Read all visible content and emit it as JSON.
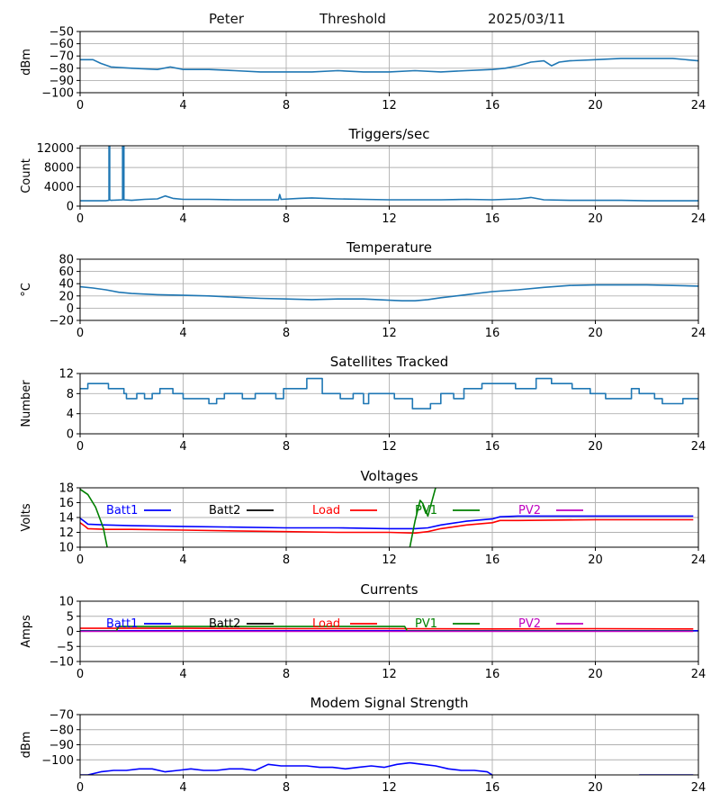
{
  "header": {
    "station": "Peter",
    "mode": "Threshold",
    "date": "2025/03/11"
  },
  "colors": {
    "default_series": "#1f77b4",
    "batt1": "#0000ff",
    "batt2": "#000000",
    "load": "#ff0000",
    "pv1": "#008000",
    "pv2": "#bf00bf",
    "grid": "#b0b0b0"
  },
  "chart_data": [
    {
      "id": "signal",
      "type": "line",
      "title": "",
      "xlabel": "",
      "ylabel": "dBm",
      "xlim": [
        0,
        24
      ],
      "ylim": [
        -100,
        -50
      ],
      "xticks": [
        0,
        4,
        8,
        12,
        16,
        20,
        24
      ],
      "yticks": [
        -100,
        -90,
        -80,
        -70,
        -60,
        -50
      ],
      "grid": true,
      "series": [
        {
          "color": "#1f77b4",
          "x": [
            0,
            0.5,
            0.8,
            1.2,
            2,
            3,
            3.5,
            4,
            5,
            6,
            7,
            8,
            9,
            10,
            11,
            12,
            13,
            14,
            15,
            16,
            16.5,
            17,
            17.5,
            18,
            18.3,
            18.6,
            19,
            20,
            21,
            22,
            23,
            24
          ],
          "y": [
            -73,
            -73,
            -76,
            -79,
            -80,
            -81,
            -79,
            -81,
            -81,
            -82,
            -83,
            -83,
            -83,
            -82,
            -83,
            -83,
            -82,
            -83,
            -82,
            -81,
            -80,
            -78,
            -75,
            -74,
            -78,
            -75,
            -74,
            -73,
            -72,
            -72,
            -72,
            -74
          ]
        }
      ]
    },
    {
      "id": "triggers",
      "type": "line",
      "title": "Triggers/sec",
      "xlabel": "",
      "ylabel": "Count",
      "xlim": [
        0,
        24
      ],
      "ylim": [
        0,
        12500
      ],
      "xticks": [
        0,
        4,
        8,
        12,
        16,
        20,
        24
      ],
      "yticks": [
        0,
        4000,
        8000,
        12000
      ],
      "grid": true,
      "series": [
        {
          "color": "#1f77b4",
          "x": [
            0,
            1,
            1.12,
            1.12,
            1.15,
            1.15,
            1.2,
            1.65,
            1.65,
            1.7,
            1.7,
            2,
            2.5,
            3,
            3.3,
            3.6,
            4,
            5,
            6,
            7,
            7.7,
            7.75,
            7.8,
            8.5,
            9,
            10,
            11,
            12,
            13,
            14,
            15,
            16,
            17,
            17.5,
            18,
            19,
            20,
            21,
            22,
            23,
            24
          ],
          "y": [
            1100,
            1100,
            1200,
            13000,
            13000,
            1300,
            1200,
            1300,
            13000,
            13000,
            1300,
            1200,
            1400,
            1500,
            2100,
            1600,
            1400,
            1400,
            1300,
            1300,
            1300,
            2400,
            1400,
            1600,
            1700,
            1500,
            1400,
            1300,
            1300,
            1300,
            1400,
            1300,
            1500,
            1800,
            1300,
            1200,
            1200,
            1200,
            1100,
            1100,
            1100
          ]
        }
      ]
    },
    {
      "id": "temperature",
      "type": "line",
      "title": "Temperature",
      "xlabel": "",
      "ylabel": "°C",
      "xlim": [
        0,
        24
      ],
      "ylim": [
        -20,
        80
      ],
      "xticks": [
        0,
        4,
        8,
        12,
        16,
        20,
        24
      ],
      "yticks": [
        -20,
        0,
        20,
        40,
        60,
        80
      ],
      "grid": true,
      "series": [
        {
          "color": "#1f77b4",
          "x": [
            0,
            0.5,
            1,
            1.5,
            2,
            3,
            4,
            5,
            6,
            7,
            8,
            9,
            10,
            11,
            12,
            12.5,
            13,
            13.5,
            14,
            15,
            16,
            17,
            18,
            19,
            20,
            21,
            22,
            23,
            24
          ],
          "y": [
            35,
            33,
            30,
            26,
            24,
            22,
            21,
            20,
            18,
            16,
            15,
            14,
            15,
            15,
            13,
            12,
            12,
            14,
            17,
            22,
            27,
            30,
            34,
            37,
            38,
            38,
            38,
            37,
            36
          ]
        }
      ]
    },
    {
      "id": "satellites",
      "type": "line",
      "title": "Satellites Tracked",
      "xlabel": "",
      "ylabel": "Number",
      "xlim": [
        0,
        24
      ],
      "ylim": [
        0,
        12
      ],
      "xticks": [
        0,
        4,
        8,
        12,
        16,
        20,
        24
      ],
      "yticks": [
        0,
        4,
        8,
        12
      ],
      "grid": true,
      "series": [
        {
          "color": "#1f77b4",
          "x": [
            0,
            0.3,
            0.3,
            1.1,
            1.1,
            1.7,
            1.7,
            1.8,
            1.8,
            2.2,
            2.2,
            2.5,
            2.5,
            2.8,
            2.8,
            3.1,
            3.1,
            3.6,
            3.6,
            4,
            4,
            5,
            5,
            5.3,
            5.3,
            5.6,
            5.6,
            6.3,
            6.3,
            6.8,
            6.8,
            7.6,
            7.6,
            7.9,
            7.9,
            8.8,
            8.8,
            9.4,
            9.4,
            10.1,
            10.1,
            10.6,
            10.6,
            11,
            11,
            11.2,
            11.2,
            12.2,
            12.2,
            12.9,
            12.9,
            13.6,
            13.6,
            14,
            14,
            14.5,
            14.5,
            14.9,
            14.9,
            15.6,
            15.6,
            16.9,
            16.9,
            17.7,
            17.7,
            18.3,
            18.3,
            19.1,
            19.1,
            19.8,
            19.8,
            20.4,
            20.4,
            21.4,
            21.4,
            21.7,
            21.7,
            22.3,
            22.3,
            22.6,
            22.6,
            23.4,
            23.4,
            24
          ],
          "y": [
            9,
            9,
            10,
            10,
            9,
            9,
            8,
            8,
            7,
            7,
            8,
            8,
            7,
            7,
            8,
            8,
            9,
            9,
            8,
            8,
            7,
            7,
            6,
            6,
            7,
            7,
            8,
            8,
            7,
            7,
            8,
            8,
            7,
            7,
            9,
            9,
            11,
            11,
            8,
            8,
            7,
            7,
            8,
            8,
            6,
            6,
            8,
            8,
            7,
            7,
            5,
            5,
            6,
            6,
            8,
            8,
            7,
            7,
            9,
            9,
            10,
            10,
            9,
            9,
            11,
            11,
            10,
            10,
            9,
            9,
            8,
            8,
            7,
            7,
            9,
            9,
            8,
            8,
            7,
            7,
            6,
            6,
            7,
            7
          ]
        }
      ]
    },
    {
      "id": "voltages",
      "type": "line",
      "title": "Voltages",
      "xlabel": "",
      "ylabel": "Volts",
      "xlim": [
        0,
        24
      ],
      "ylim": [
        10,
        18
      ],
      "xticks": [
        0,
        4,
        8,
        12,
        16,
        20,
        24
      ],
      "yticks": [
        10,
        12,
        14,
        16,
        18
      ],
      "grid": true,
      "legend": [
        "Batt1",
        "Batt2",
        "Load",
        "PV1",
        "PV2"
      ],
      "series": [
        {
          "name": "Batt1",
          "color": "#0000ff",
          "x": [
            0,
            0.2,
            0.3,
            1,
            2,
            4,
            6,
            8,
            10,
            12,
            13,
            13.5,
            14,
            15,
            16,
            16.3,
            17,
            20,
            23,
            23.8
          ],
          "y": [
            13.9,
            13.4,
            13.1,
            13,
            12.9,
            12.8,
            12.7,
            12.6,
            12.6,
            12.5,
            12.5,
            12.6,
            13,
            13.5,
            13.8,
            14.1,
            14.2,
            14.2,
            14.2,
            14.2
          ]
        },
        {
          "name": "Batt2",
          "color": "#000000",
          "x": [],
          "y": []
        },
        {
          "name": "Load",
          "color": "#ff0000",
          "x": [
            0,
            0.2,
            0.3,
            1,
            2,
            4,
            6,
            8,
            10,
            12,
            13,
            13.5,
            14,
            15,
            16,
            16.3,
            17,
            20,
            23,
            23.8
          ],
          "y": [
            13.3,
            12.8,
            12.5,
            12.4,
            12.4,
            12.3,
            12.2,
            12.1,
            12,
            12,
            11.9,
            12.1,
            12.5,
            13,
            13.3,
            13.6,
            13.6,
            13.7,
            13.7,
            13.7
          ]
        },
        {
          "name": "PV1",
          "color": "#008000",
          "x": [
            0,
            0.3,
            0.6,
            0.9,
            1.05
          ],
          "y": [
            17.8,
            17.1,
            15.4,
            12.6,
            10
          ],
          "x2": [
            12.8,
            13.0,
            13.2,
            13.3,
            13.5,
            13.8
          ],
          "y2": [
            10,
            13.5,
            16.3,
            15.9,
            14.2,
            18
          ]
        },
        {
          "name": "PV2",
          "color": "#bf00bf",
          "x": [],
          "y": []
        }
      ]
    },
    {
      "id": "currents",
      "type": "line",
      "title": "Currents",
      "xlabel": "",
      "ylabel": "Amps",
      "xlim": [
        0,
        24
      ],
      "ylim": [
        -10,
        10
      ],
      "xticks": [
        0,
        4,
        8,
        12,
        16,
        20,
        24
      ],
      "yticks": [
        -10,
        -5,
        0,
        5,
        10
      ],
      "grid": true,
      "legend": [
        "Batt1",
        "Batt2",
        "Load",
        "PV1",
        "PV2"
      ],
      "series": [
        {
          "name": "Batt1",
          "color": "#0000ff",
          "x": [
            0,
            24
          ],
          "y": [
            0.2,
            0.2
          ]
        },
        {
          "name": "Batt2",
          "color": "#000000",
          "x": [],
          "y": []
        },
        {
          "name": "Load",
          "color": "#ff0000",
          "x": [
            0,
            4,
            8,
            12,
            16,
            20,
            23.8
          ],
          "y": [
            1.0,
            1.0,
            0.9,
            0.9,
            0.8,
            0.9,
            0.8
          ]
        },
        {
          "name": "PV1",
          "color": "#008000",
          "x": [
            0,
            1.4,
            1.5,
            12.6,
            12.7,
            23.8
          ],
          "y": [
            0.1,
            0.1,
            1.6,
            1.6,
            0.1,
            0.1
          ]
        },
        {
          "name": "PV2",
          "color": "#bf00bf",
          "x": [
            0,
            23.8
          ],
          "y": [
            0.0,
            0.0
          ]
        }
      ]
    },
    {
      "id": "modem",
      "type": "line",
      "title": "Modem Signal Strength",
      "xlabel": "",
      "ylabel": "dBm",
      "xlim": [
        0,
        24
      ],
      "ylim": [
        -110,
        -70
      ],
      "xticks": [
        0,
        4,
        8,
        12,
        16,
        20,
        24
      ],
      "yticks": [
        -100,
        -90,
        -80,
        -70
      ],
      "grid": true,
      "series": [
        {
          "color": "#0000ff",
          "x": [
            0,
            0.3,
            0.8,
            1.3,
            1.8,
            2.3,
            2.8,
            3.3,
            3.8,
            4.3,
            4.8,
            5.3,
            5.8,
            6.3,
            6.8,
            7.3,
            7.8,
            8.3,
            8.8,
            9.3,
            9.8,
            10.3,
            10.8,
            11.3,
            11.8,
            12.3,
            12.8,
            13.3,
            13.8,
            14.3,
            14.8,
            15.3,
            15.8,
            16
          ],
          "y": [
            -110,
            -110,
            -108,
            -107,
            -107,
            -106,
            -106,
            -108,
            -107,
            -106,
            -107,
            -107,
            -106,
            -106,
            -107,
            -103,
            -104,
            -104,
            -104,
            -105,
            -105,
            -106,
            -105,
            -104,
            -105,
            -103,
            -102,
            -103,
            -104,
            -106,
            -107,
            -107,
            -108,
            -110
          ]
        },
        {
          "color": "#0000ff",
          "x": [
            21.7,
            23.8
          ],
          "y": [
            -110,
            -110
          ]
        }
      ]
    }
  ]
}
